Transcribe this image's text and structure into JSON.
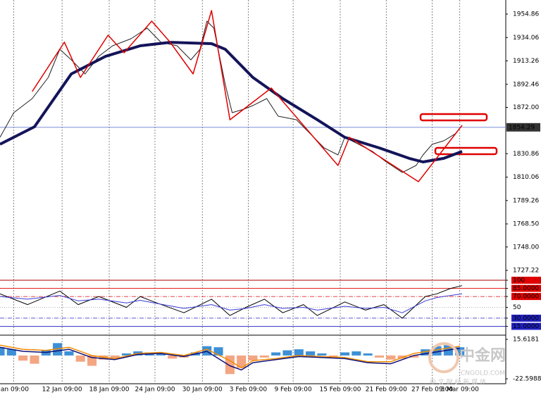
{
  "chart_data": [
    {
      "type": "line",
      "xlim": [
        0,
        220
      ],
      "ylim": [
        1719.09,
        1967.37
      ],
      "xticks": [
        {
          "value": 6,
          "label": "Jan 09:00"
        },
        {
          "value": 27,
          "label": "12 Jan 09:00"
        },
        {
          "value": 47.5,
          "label": "18 Jan 09:00"
        },
        {
          "value": 67.4,
          "label": "24 Jan 09:00"
        },
        {
          "value": 88,
          "label": "30 Jan 09:00"
        },
        {
          "value": 108,
          "label": "3 Feb 09:00"
        },
        {
          "value": 127.5,
          "label": "9 Feb 09:00"
        },
        {
          "value": 148,
          "label": "15 Feb 09:00"
        },
        {
          "value": 168,
          "label": "21 Feb 09:00"
        },
        {
          "value": 188,
          "label": "27 Feb 09:00"
        },
        {
          "value": 200,
          "label": "3 Mar 09:00"
        }
      ],
      "yticks": [
        1954.86,
        1934.06,
        1913.26,
        1892.46,
        {
          "value": 1872,
          "label": "1872.00"
        },
        1830.86,
        1810.06,
        1789.26,
        {
          "value": 1768.5,
          "label": "1768.50"
        },
        {
          "value": 1748,
          "label": "1748.00"
        },
        1727.22
      ],
      "current_price": 1854.29,
      "series": [
        {
          "color": "#222222",
          "width": 1,
          "x": [
            0,
            6,
            14,
            21,
            26,
            31,
            37,
            43,
            49,
            57,
            64,
            70,
            77,
            83,
            87,
            90,
            93,
            98,
            101,
            106,
            110,
            116,
            121,
            129,
            135,
            141,
            147,
            150,
            156,
            162,
            168,
            175,
            181,
            184,
            188,
            193,
            198,
            201
          ],
          "values": [
            1845.4,
            1867.3,
            1879.8,
            1898.6,
            1923.6,
            1914.2,
            1901.7,
            1917.4,
            1926.7,
            1933.0,
            1942.4,
            1929.8,
            1926.7,
            1914.2,
            1923.6,
            1948.6,
            1942.4,
            1892.3,
            1867.3,
            1870.4,
            1873.6,
            1879.8,
            1864.2,
            1861.0,
            1848.5,
            1836.0,
            1829.8,
            1845.4,
            1839.2,
            1832.9,
            1823.5,
            1814.2,
            1820.4,
            1829.8,
            1839.2,
            1842.3,
            1848.5,
            1856.1
          ]
        },
        {
          "color": "#14145a",
          "width": 4,
          "x": [
            0,
            15,
            31,
            46,
            61,
            74,
            92,
            98,
            110,
            123,
            138,
            150,
            165,
            178,
            184,
            193,
            201
          ],
          "values": [
            1839.2,
            1854.8,
            1901.7,
            1917.4,
            1926.7,
            1929.8,
            1928.6,
            1923.6,
            1898.6,
            1879.8,
            1861.0,
            1845.4,
            1836.0,
            1826.7,
            1823.5,
            1826.7,
            1832.9
          ]
        },
        {
          "color": "#e00000",
          "width": 1.5,
          "x": [
            14,
            28,
            35,
            47,
            54,
            66,
            74,
            84,
            92,
            100,
            118,
            147,
            152,
            182,
            201
          ],
          "values": [
            1886.1,
            1929.9,
            1898.6,
            1936.1,
            1920.5,
            1948.6,
            1929.9,
            1901.7,
            1958.0,
            1861.0,
            1889.2,
            1820.4,
            1845.4,
            1806.0,
            1856.1
          ]
        }
      ]
    },
    {
      "type": "line",
      "xlim": [
        0,
        220
      ],
      "ylim": [
        0,
        100
      ],
      "yticks": [
        100,
        {
          "value": 85,
          "label": "85.0000"
        },
        {
          "value": 70,
          "label": "70.0000"
        },
        50,
        {
          "value": 30,
          "label": "30.0000"
        },
        {
          "value": 15,
          "label": "15.0000"
        }
      ],
      "series": [
        {
          "color": "#000000",
          "width": 1,
          "x": [
            0,
            12,
            26,
            34,
            43,
            55,
            61,
            67,
            80,
            92,
            100,
            107,
            115,
            123,
            132,
            138,
            150,
            159,
            167,
            175,
            185,
            190,
            196,
            201
          ],
          "values": [
            75,
            55,
            80,
            55,
            70,
            50,
            70,
            60,
            40,
            65,
            35,
            50,
            65,
            40,
            55,
            35,
            60,
            45,
            55,
            30,
            70,
            75,
            85,
            90
          ]
        },
        {
          "color": "#3b3bd6",
          "width": 1,
          "x": [
            0,
            12,
            26,
            34,
            43,
            55,
            61,
            67,
            80,
            92,
            100,
            107,
            115,
            123,
            132,
            138,
            150,
            159,
            167,
            175,
            185,
            190,
            196,
            201
          ],
          "values": [
            70,
            65,
            72,
            62,
            65,
            58,
            63,
            58,
            48,
            55,
            45,
            48,
            55,
            48,
            50,
            45,
            52,
            48,
            50,
            40,
            62,
            68,
            72,
            75
          ]
        }
      ]
    },
    {
      "type": "macd",
      "xlim": [
        0,
        220
      ],
      "ylim": [
        -27.38,
        18.35
      ],
      "yticks": [
        15.6181,
        -22.5988
      ],
      "series": [
        {
          "kind": "bar",
          "color": "#3d8fd6",
          "neg_color": "#f4a582",
          "x": [
            0,
            5,
            10,
            15,
            20,
            25,
            30,
            35,
            40,
            45,
            50,
            55,
            60,
            65,
            70,
            75,
            80,
            85,
            90,
            95,
            100,
            105,
            110,
            115,
            120,
            125,
            130,
            135,
            140,
            145,
            150,
            155,
            160,
            165,
            170,
            175,
            180,
            185,
            190,
            195,
            200
          ],
          "values": [
            8,
            6,
            -5,
            -8,
            5,
            12,
            4,
            -6,
            -10,
            -4,
            -3,
            2,
            4,
            3,
            2,
            -3,
            -2,
            3,
            9,
            8,
            -18,
            -12,
            -5,
            -2,
            3,
            5,
            6,
            4,
            2,
            -2,
            3,
            4,
            2,
            -2,
            -4,
            -3,
            -2,
            6,
            9,
            10,
            8
          ]
        },
        {
          "kind": "line",
          "color": "#f08c00",
          "width": 1.5,
          "x": [
            0,
            10,
            20,
            30,
            40,
            50,
            60,
            70,
            80,
            90,
            100,
            105,
            110,
            120,
            130,
            140,
            150,
            160,
            170,
            180,
            200
          ],
          "values": [
            10,
            6,
            5,
            8,
            0,
            -3,
            2,
            3,
            0,
            6,
            -5,
            -12,
            -5,
            -3,
            0,
            -1,
            -2,
            -6,
            -6,
            2,
            9
          ]
        },
        {
          "kind": "line",
          "color": "#10107a",
          "width": 1.5,
          "x": [
            0,
            10,
            20,
            30,
            40,
            50,
            60,
            70,
            80,
            90,
            100,
            105,
            110,
            120,
            130,
            140,
            150,
            160,
            170,
            180,
            200
          ],
          "values": [
            8,
            4,
            3,
            6,
            -2,
            -4,
            1,
            2,
            -1,
            4,
            -10,
            -14,
            -7,
            -4,
            -1,
            -2,
            -3,
            -7,
            -8,
            0,
            7
          ]
        }
      ]
    }
  ],
  "watermark": {
    "logo": "中金网",
    "site": "CNGOLD.COM",
    "tagline": "中 文 财 经 新 媒 体"
  }
}
